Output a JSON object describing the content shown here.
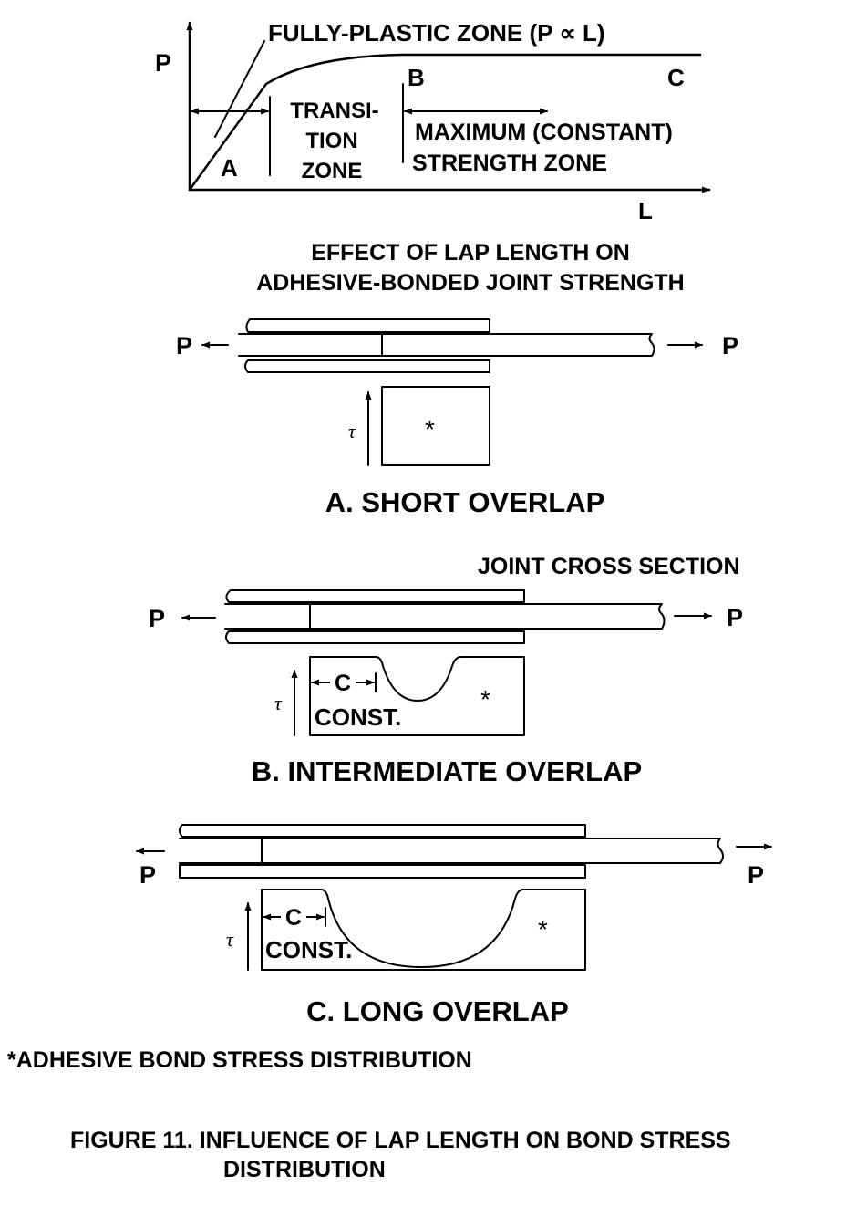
{
  "graph": {
    "p_axis": "P",
    "l_axis": "L",
    "fully_plastic": "FULLY-PLASTIC ZONE (P ∝ L)",
    "point_a": "A",
    "point_b": "B",
    "point_c": "C",
    "transition": [
      "TRANSI-",
      "TION",
      "ZONE"
    ],
    "max_zone": [
      "MAXIMUM (CONSTANT)",
      "STRENGTH ZONE"
    ],
    "caption": [
      "EFFECT OF LAP LENGTH ON",
      "ADHESIVE-BONDED JOINT STRENGTH"
    ]
  },
  "load_label": "P",
  "tau": "τ",
  "asterisk": "*",
  "const_c": "C",
  "const_label": "CONST.",
  "joint_cross_section": "JOINT CROSS SECTION",
  "panels": {
    "short": "A.  SHORT OVERLAP",
    "intermediate": "B.  INTERMEDIATE OVERLAP",
    "long": "C.  LONG OVERLAP"
  },
  "footnote": "*ADHESIVE BOND STRESS DISTRIBUTION",
  "figure_caption": [
    "FIGURE 11.  INFLUENCE OF LAP LENGTH ON BOND STRESS",
    "DISTRIBUTION"
  ]
}
